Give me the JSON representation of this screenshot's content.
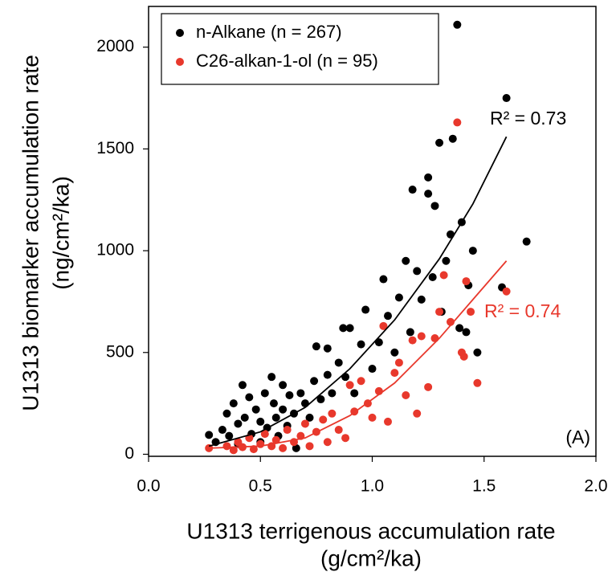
{
  "chart_data": {
    "type": "scatter",
    "x_label": [
      "U1313 terrigenous accumulation rate",
      "(g/cm²/ka)"
    ],
    "y_label": [
      "U1313 biomarker accumulation rate",
      "(ng/cm²/ka)"
    ],
    "xlim": [
      0,
      2
    ],
    "ylim": [
      -10,
      2200
    ],
    "xticks": [
      {
        "value": 0,
        "label": "0.0"
      },
      {
        "value": 0.5,
        "label": "0.5"
      },
      {
        "value": 1,
        "label": "1.0"
      },
      {
        "value": 1.5,
        "label": "1.5"
      },
      {
        "value": 2,
        "label": "2.0"
      }
    ],
    "yticks": [
      0,
      500,
      1000,
      1500,
      2000
    ],
    "legend": "upper left",
    "series": [
      {
        "name": "n-Alkane (n = 267)",
        "color": "#000000",
        "x": [
          0.27,
          0.3,
          0.33,
          0.35,
          0.36,
          0.38,
          0.4,
          0.4,
          0.42,
          0.43,
          0.45,
          0.46,
          0.48,
          0.5,
          0.5,
          0.52,
          0.53,
          0.55,
          0.56,
          0.57,
          0.58,
          0.6,
          0.6,
          0.62,
          0.63,
          0.65,
          0.66,
          0.68,
          0.7,
          0.72,
          0.74,
          0.75,
          0.77,
          0.8,
          0.8,
          0.82,
          0.85,
          0.87,
          0.88,
          0.9,
          0.92,
          0.95,
          0.97,
          1.0,
          1.03,
          1.05,
          1.07,
          1.1,
          1.12,
          1.15,
          1.17,
          1.18,
          1.2,
          1.22,
          1.25,
          1.25,
          1.27,
          1.28,
          1.3,
          1.31,
          1.33,
          1.35,
          1.36,
          1.38,
          1.39,
          1.4,
          1.42,
          1.43,
          1.45,
          1.47,
          1.6,
          1.58,
          1.69
        ],
        "values": [
          95,
          60,
          120,
          200,
          90,
          250,
          150,
          50,
          340,
          180,
          280,
          100,
          220,
          160,
          60,
          300,
          130,
          380,
          250,
          180,
          90,
          340,
          220,
          140,
          290,
          200,
          30,
          300,
          250,
          180,
          360,
          530,
          270,
          520,
          390,
          300,
          450,
          620,
          380,
          620,
          300,
          540,
          710,
          420,
          550,
          860,
          680,
          500,
          770,
          950,
          600,
          1300,
          900,
          760,
          1360,
          1280,
          870,
          1220,
          1530,
          700,
          950,
          1080,
          1550,
          2110,
          620,
          1140,
          600,
          830,
          1000,
          500,
          1750,
          820,
          1045
        ]
      },
      {
        "name": "C26-alkan-1-ol (n = 95)",
        "color": "#e8382c",
        "x": [
          0.27,
          0.35,
          0.38,
          0.4,
          0.42,
          0.45,
          0.47,
          0.5,
          0.52,
          0.55,
          0.57,
          0.6,
          0.62,
          0.65,
          0.68,
          0.7,
          0.72,
          0.75,
          0.78,
          0.8,
          0.82,
          0.85,
          0.88,
          0.9,
          0.92,
          0.95,
          0.98,
          1.0,
          1.03,
          1.05,
          1.07,
          1.1,
          1.12,
          1.15,
          1.18,
          1.2,
          1.22,
          1.25,
          1.28,
          1.3,
          1.32,
          1.35,
          1.38,
          1.4,
          1.42,
          1.44,
          1.47,
          1.6,
          1.41
        ],
        "values": [
          30,
          40,
          20,
          60,
          35,
          80,
          25,
          50,
          100,
          40,
          70,
          30,
          120,
          60,
          90,
          150,
          40,
          110,
          170,
          60,
          200,
          120,
          80,
          340,
          210,
          360,
          250,
          180,
          310,
          630,
          160,
          400,
          450,
          290,
          560,
          200,
          580,
          330,
          570,
          700,
          880,
          650,
          1630,
          500,
          850,
          700,
          350,
          800,
          480
        ]
      }
    ],
    "fits": [
      {
        "color": "#000000",
        "x": [
          0.27,
          0.5,
          0.7,
          0.9,
          1.1,
          1.3,
          1.45,
          1.6
        ],
        "values": [
          40,
          110,
          230,
          420,
          660,
          960,
          1230,
          1560
        ],
        "label": "R² = 0.73"
      },
      {
        "color": "#e8382c",
        "x": [
          0.27,
          0.5,
          0.7,
          0.9,
          1.1,
          1.3,
          1.45,
          1.6
        ],
        "values": [
          30,
          40,
          80,
          190,
          350,
          570,
          760,
          950
        ],
        "label": "R² = 0.74"
      }
    ],
    "panel_label": "(A)"
  }
}
